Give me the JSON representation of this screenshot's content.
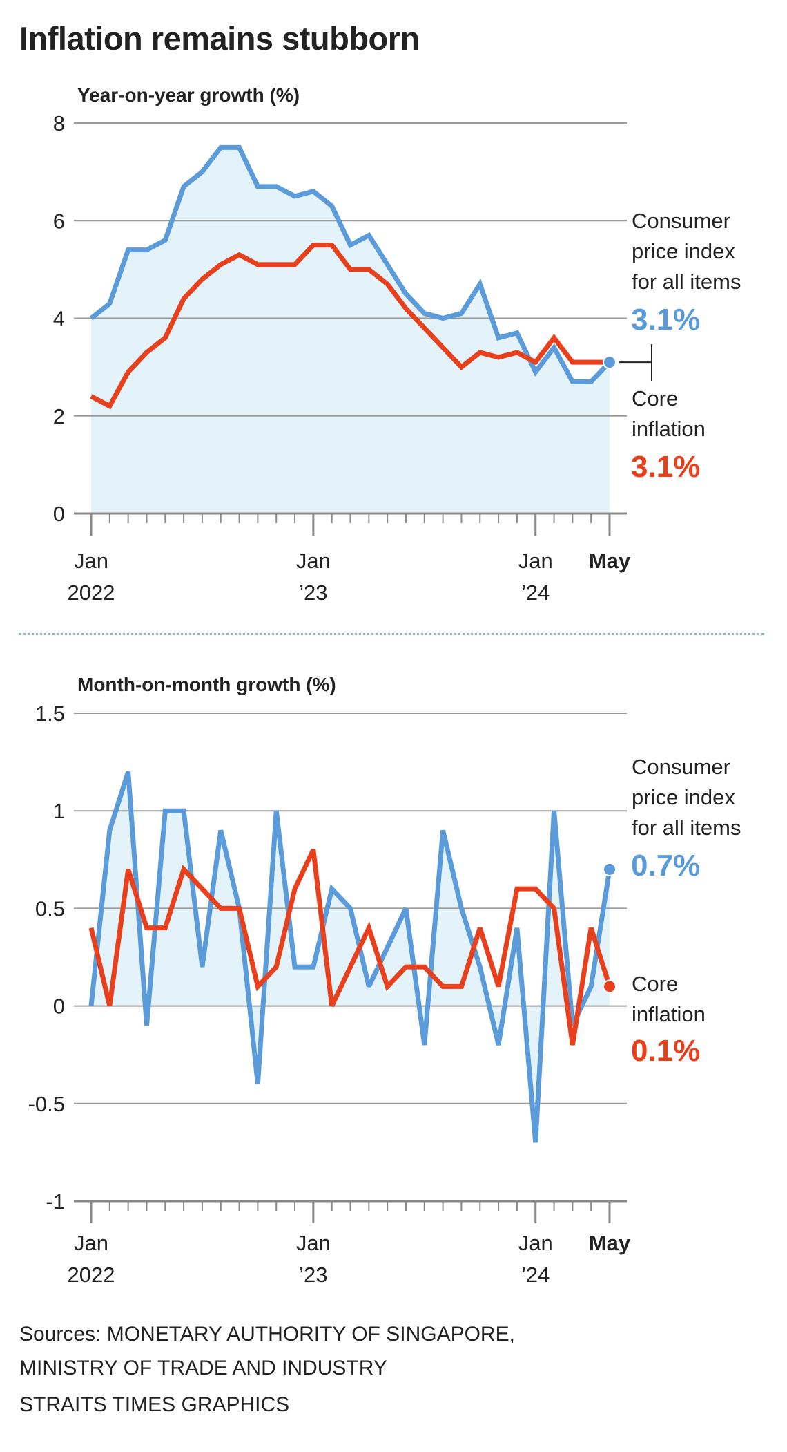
{
  "title": "Inflation remains stubborn",
  "colors": {
    "cpi": "#5b9bd9",
    "core": "#e8401c",
    "fill": "#e3f3f9",
    "grid": "#9a9a9a"
  },
  "chart_data": [
    {
      "type": "line",
      "title": "Year-on-year growth (%)",
      "ylim": [
        0,
        8
      ],
      "yticks": [
        "8",
        "6",
        "4",
        "2",
        "0"
      ],
      "ytick_values": [
        8,
        6,
        4,
        2,
        0
      ],
      "x": [
        "Jan 2022",
        "Feb 2022",
        "Mar 2022",
        "Apr 2022",
        "May 2022",
        "Jun 2022",
        "Jul 2022",
        "Aug 2022",
        "Sep 2022",
        "Oct 2022",
        "Nov 2022",
        "Dec 2022",
        "Jan 2023",
        "Feb 2023",
        "Mar 2023",
        "Apr 2023",
        "May 2023",
        "Jun 2023",
        "Jul 2023",
        "Aug 2023",
        "Sep 2023",
        "Oct 2023",
        "Nov 2023",
        "Dec 2023",
        "Jan 2024",
        "Feb 2024",
        "Mar 2024",
        "Apr 2024",
        "May 2024"
      ],
      "xtick_labels": [
        {
          "line1": "Jan",
          "line2": "2022"
        },
        {
          "line1": "Jan",
          "line2": "’23"
        },
        {
          "line1": "Jan",
          "line2": "’24"
        },
        {
          "line1": "May",
          "line2": ""
        }
      ],
      "grid": true,
      "series": [
        {
          "name": "Consumer price index for all items",
          "label_lines": [
            "Consumer",
            "price index",
            "for all items"
          ],
          "value_label": "3.1%",
          "values": [
            4.0,
            4.3,
            5.4,
            5.4,
            5.6,
            6.7,
            7.0,
            7.5,
            7.5,
            6.7,
            6.7,
            6.5,
            6.6,
            6.3,
            5.5,
            5.7,
            5.1,
            4.5,
            4.1,
            4.0,
            4.1,
            4.7,
            3.6,
            3.7,
            2.9,
            3.4,
            2.7,
            2.7,
            3.1
          ]
        },
        {
          "name": "Core inflation",
          "label_lines": [
            "Core",
            "inflation"
          ],
          "value_label": "3.1%",
          "values": [
            2.4,
            2.2,
            2.9,
            3.3,
            3.6,
            4.4,
            4.8,
            5.1,
            5.3,
            5.1,
            5.1,
            5.1,
            5.5,
            5.5,
            5.0,
            5.0,
            4.7,
            4.2,
            3.8,
            3.4,
            3.0,
            3.3,
            3.2,
            3.3,
            3.1,
            3.6,
            3.1,
            3.1,
            3.1
          ]
        }
      ]
    },
    {
      "type": "line",
      "title": "Month-on-month growth (%)",
      "ylim": [
        -1,
        1.5
      ],
      "yticks": [
        "1.5",
        "1",
        "0.5",
        "0",
        "-0.5",
        "-1"
      ],
      "ytick_values": [
        1.5,
        1,
        0.5,
        0,
        -0.5,
        -1
      ],
      "x": [
        "Jan 2022",
        "Feb 2022",
        "Mar 2022",
        "Apr 2022",
        "May 2022",
        "Jun 2022",
        "Jul 2022",
        "Aug 2022",
        "Sep 2022",
        "Oct 2022",
        "Nov 2022",
        "Dec 2022",
        "Jan 2023",
        "Feb 2023",
        "Mar 2023",
        "Apr 2023",
        "May 2023",
        "Jun 2023",
        "Jul 2023",
        "Aug 2023",
        "Sep 2023",
        "Oct 2023",
        "Nov 2023",
        "Dec 2023",
        "Jan 2024",
        "Feb 2024",
        "Mar 2024",
        "Apr 2024",
        "May 2024"
      ],
      "xtick_labels": [
        {
          "line1": "Jan",
          "line2": "2022"
        },
        {
          "line1": "Jan",
          "line2": "’23"
        },
        {
          "line1": "Jan",
          "line2": "’24"
        },
        {
          "line1": "May",
          "line2": ""
        }
      ],
      "grid": true,
      "series": [
        {
          "name": "Consumer price index for all items",
          "label_lines": [
            "Consumer",
            "price index",
            "for all items"
          ],
          "value_label": "0.7%",
          "values": [
            0,
            0.9,
            1.2,
            -0.1,
            1.0,
            1.0,
            0.2,
            0.9,
            0.5,
            -0.4,
            1.0,
            0.2,
            0.2,
            0.6,
            0.5,
            0.1,
            0.3,
            0.5,
            -0.2,
            0.9,
            0.5,
            0.2,
            -0.2,
            0.4,
            -0.7,
            1.0,
            -0.1,
            0.1,
            0.7
          ]
        },
        {
          "name": "Core inflation",
          "label_lines": [
            "Core",
            "inflation"
          ],
          "value_label": "0.1%",
          "values": [
            0.4,
            0,
            0.7,
            0.4,
            0.4,
            0.7,
            0.6,
            0.5,
            0.5,
            0.1,
            0.2,
            0.6,
            0.8,
            0,
            0.2,
            0.4,
            0.1,
            0.2,
            0.2,
            0.1,
            0.1,
            0.4,
            0.1,
            0.6,
            0.6,
            0.5,
            -0.2,
            0.4,
            0.1
          ]
        }
      ]
    }
  ],
  "sources": [
    "Sources: MONETARY AUTHORITY OF SINGAPORE,",
    "MINISTRY OF TRADE AND INDUSTRY",
    "STRAITS TIMES GRAPHICS"
  ]
}
